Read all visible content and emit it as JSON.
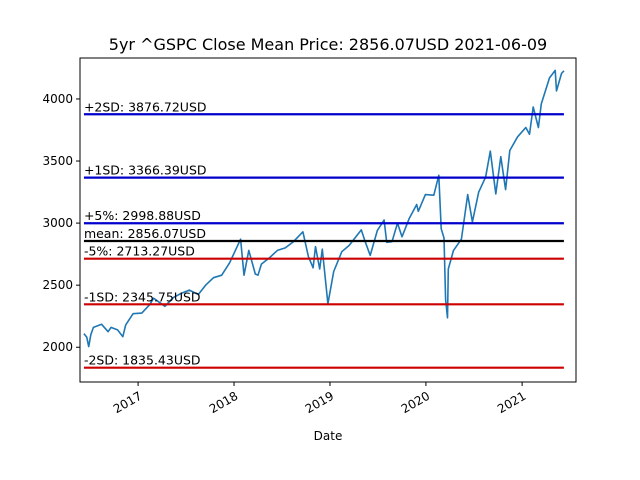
{
  "chart_data": {
    "type": "line",
    "title": "5yr ^GSPC Close Mean Price: 2856.07USD 2021-06-09",
    "xlabel": "Date",
    "ylabel": "",
    "x_range": [
      "2016-05-25",
      "2021-07-25"
    ],
    "ylim": [
      1720,
      4330
    ],
    "grid": false,
    "x_ticks": [
      {
        "date": "2017-01-01",
        "label": "2017"
      },
      {
        "date": "2018-01-01",
        "label": "2018"
      },
      {
        "date": "2019-01-01",
        "label": "2019"
      },
      {
        "date": "2020-01-01",
        "label": "2020"
      },
      {
        "date": "2021-01-01",
        "label": "2021"
      }
    ],
    "y_ticks": [
      2000,
      2500,
      3000,
      3500,
      4000
    ],
    "levels": [
      {
        "label": "+2SD: 3876.72USD",
        "value": 3876.72,
        "color": "#0000cc"
      },
      {
        "label": "+1SD: 3366.39USD",
        "value": 3366.39,
        "color": "#0000cc"
      },
      {
        "label": "+5%: 2998.88USD",
        "value": 2998.88,
        "color": "#0000cc"
      },
      {
        "label": "mean: 2856.07USD",
        "value": 2856.07,
        "color": "#000000"
      },
      {
        "label": "-5%: 2713.27USD",
        "value": 2713.27,
        "color": "#cc0000"
      },
      {
        "label": "-1SD: 2345.75USD",
        "value": 2345.75,
        "color": "#cc0000"
      },
      {
        "label": "-2SD: 1835.43USD",
        "value": 1835.43,
        "color": "#cc0000"
      }
    ],
    "level_range": [
      "2016-06-09",
      "2021-06-09"
    ],
    "series": [
      {
        "color": "#1f77b4",
        "points": [
          [
            "2016-06-09",
            2110
          ],
          [
            "2016-06-20",
            2080
          ],
          [
            "2016-06-27",
            2005
          ],
          [
            "2016-07-05",
            2100
          ],
          [
            "2016-07-15",
            2160
          ],
          [
            "2016-08-15",
            2185
          ],
          [
            "2016-09-09",
            2125
          ],
          [
            "2016-09-20",
            2160
          ],
          [
            "2016-10-15",
            2140
          ],
          [
            "2016-11-04",
            2085
          ],
          [
            "2016-11-15",
            2180
          ],
          [
            "2016-12-13",
            2270
          ],
          [
            "2017-01-15",
            2275
          ],
          [
            "2017-02-15",
            2345
          ],
          [
            "2017-03-01",
            2395
          ],
          [
            "2017-04-13",
            2330
          ],
          [
            "2017-05-15",
            2400
          ],
          [
            "2017-06-15",
            2435
          ],
          [
            "2017-07-15",
            2460
          ],
          [
            "2017-08-18",
            2425
          ],
          [
            "2017-09-15",
            2500
          ],
          [
            "2017-10-15",
            2560
          ],
          [
            "2017-11-15",
            2580
          ],
          [
            "2017-12-15",
            2680
          ],
          [
            "2018-01-26",
            2870
          ],
          [
            "2018-02-08",
            2580
          ],
          [
            "2018-02-26",
            2780
          ],
          [
            "2018-03-23",
            2590
          ],
          [
            "2018-04-02",
            2580
          ],
          [
            "2018-04-15",
            2670
          ],
          [
            "2018-05-15",
            2720
          ],
          [
            "2018-06-15",
            2780
          ],
          [
            "2018-07-15",
            2800
          ],
          [
            "2018-08-15",
            2850
          ],
          [
            "2018-09-20",
            2930
          ],
          [
            "2018-10-11",
            2730
          ],
          [
            "2018-10-29",
            2640
          ],
          [
            "2018-11-07",
            2810
          ],
          [
            "2018-11-23",
            2630
          ],
          [
            "2018-12-03",
            2790
          ],
          [
            "2018-12-24",
            2350
          ],
          [
            "2019-01-15",
            2610
          ],
          [
            "2019-02-15",
            2770
          ],
          [
            "2019-03-15",
            2820
          ],
          [
            "2019-04-30",
            2945
          ],
          [
            "2019-05-15",
            2850
          ],
          [
            "2019-06-03",
            2740
          ],
          [
            "2019-06-30",
            2940
          ],
          [
            "2019-07-26",
            3025
          ],
          [
            "2019-08-05",
            2845
          ],
          [
            "2019-08-25",
            2850
          ],
          [
            "2019-09-15",
            3000
          ],
          [
            "2019-10-02",
            2890
          ],
          [
            "2019-10-30",
            3040
          ],
          [
            "2019-11-27",
            3150
          ],
          [
            "2019-12-03",
            3095
          ],
          [
            "2019-12-30",
            3230
          ],
          [
            "2020-01-31",
            3225
          ],
          [
            "2020-02-19",
            3385
          ],
          [
            "2020-02-28",
            2955
          ],
          [
            "2020-03-10",
            2880
          ],
          [
            "2020-03-16",
            2385
          ],
          [
            "2020-03-23",
            2237
          ],
          [
            "2020-03-26",
            2630
          ],
          [
            "2020-04-15",
            2780
          ],
          [
            "2020-05-15",
            2870
          ],
          [
            "2020-06-08",
            3230
          ],
          [
            "2020-06-26",
            3010
          ],
          [
            "2020-07-20",
            3250
          ],
          [
            "2020-08-15",
            3370
          ],
          [
            "2020-09-02",
            3580
          ],
          [
            "2020-09-23",
            3235
          ],
          [
            "2020-10-12",
            3535
          ],
          [
            "2020-10-30",
            3270
          ],
          [
            "2020-11-15",
            3585
          ],
          [
            "2020-12-15",
            3695
          ],
          [
            "2021-01-15",
            3770
          ],
          [
            "2021-01-29",
            3715
          ],
          [
            "2021-02-12",
            3935
          ],
          [
            "2021-03-04",
            3770
          ],
          [
            "2021-03-15",
            3960
          ],
          [
            "2021-04-15",
            4170
          ],
          [
            "2021-05-07",
            4230
          ],
          [
            "2021-05-12",
            4065
          ],
          [
            "2021-05-31",
            4205
          ],
          [
            "2021-06-09",
            4227
          ]
        ]
      }
    ]
  }
}
